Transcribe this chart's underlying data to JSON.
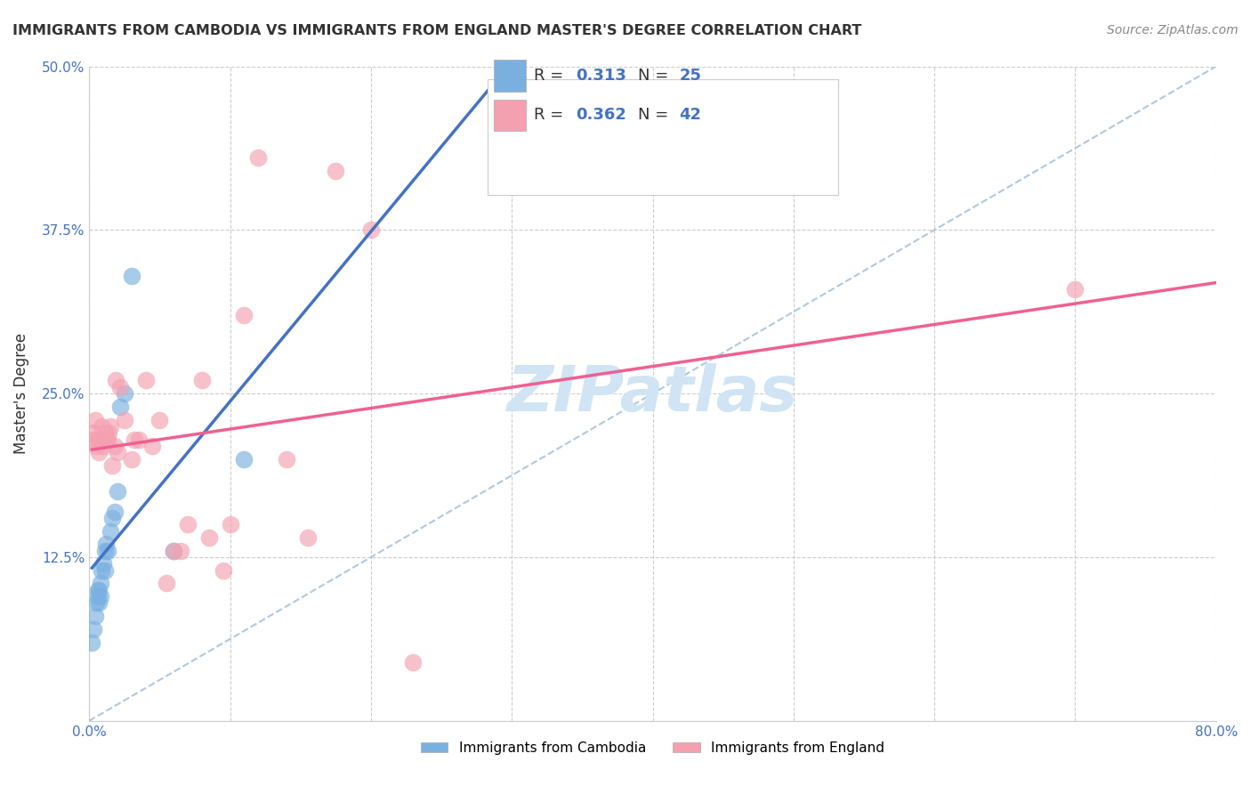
{
  "title": "IMMIGRANTS FROM CAMBODIA VS IMMIGRANTS FROM ENGLAND MASTER'S DEGREE CORRELATION CHART",
  "source": "Source: ZipAtlas.com",
  "ylabel": "Master's Degree",
  "xlim": [
    0.0,
    0.8
  ],
  "ylim": [
    0.0,
    0.5
  ],
  "legend1_r": "0.313",
  "legend1_n": "25",
  "legend2_r": "0.362",
  "legend2_n": "42",
  "blue_color": "#7ab0e0",
  "pink_color": "#f4a0b0",
  "line_blue": "#4472c4",
  "line_pink": "#f06090",
  "diag_color": "#b0c8e0",
  "watermark": "ZIPatlas",
  "watermark_color": "#d0e4f4",
  "cambodia_x": [
    0.002,
    0.003,
    0.004,
    0.005,
    0.006,
    0.006,
    0.007,
    0.007,
    0.008,
    0.008,
    0.009,
    0.01,
    0.011,
    0.011,
    0.012,
    0.013,
    0.015,
    0.016,
    0.018,
    0.02,
    0.022,
    0.025,
    0.03,
    0.06,
    0.11
  ],
  "cambodia_y": [
    0.06,
    0.07,
    0.08,
    0.09,
    0.095,
    0.1,
    0.09,
    0.1,
    0.095,
    0.105,
    0.115,
    0.12,
    0.115,
    0.13,
    0.135,
    0.13,
    0.145,
    0.155,
    0.16,
    0.175,
    0.24,
    0.25,
    0.34,
    0.13,
    0.2
  ],
  "england_x": [
    0.002,
    0.003,
    0.004,
    0.005,
    0.006,
    0.007,
    0.008,
    0.009,
    0.01,
    0.011,
    0.012,
    0.013,
    0.014,
    0.015,
    0.016,
    0.018,
    0.019,
    0.02,
    0.022,
    0.025,
    0.03,
    0.032,
    0.035,
    0.04,
    0.045,
    0.05,
    0.055,
    0.06,
    0.065,
    0.07,
    0.08,
    0.085,
    0.095,
    0.1,
    0.11,
    0.12,
    0.14,
    0.155,
    0.175,
    0.2,
    0.23,
    0.7
  ],
  "england_y": [
    0.215,
    0.22,
    0.23,
    0.21,
    0.215,
    0.205,
    0.215,
    0.225,
    0.21,
    0.22,
    0.215,
    0.215,
    0.22,
    0.225,
    0.195,
    0.21,
    0.26,
    0.205,
    0.255,
    0.23,
    0.2,
    0.215,
    0.215,
    0.26,
    0.21,
    0.23,
    0.105,
    0.13,
    0.13,
    0.15,
    0.26,
    0.14,
    0.115,
    0.15,
    0.31,
    0.43,
    0.2,
    0.14,
    0.42,
    0.375,
    0.045,
    0.33
  ]
}
